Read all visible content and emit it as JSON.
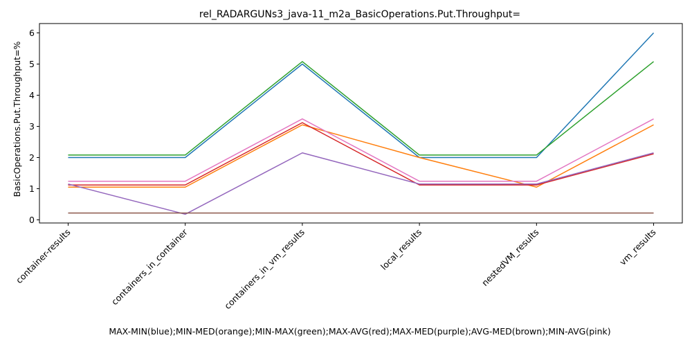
{
  "chart_data": {
    "type": "line",
    "title": "rel_RADARGUNs3_java-11_m2a_BasicOperations.Put.Throughput=",
    "xlabel": "MAX-MIN(blue);MIN-MED(orange);MIN-MAX(green);MAX-AVG(red);MAX-MED(purple);AVG-MED(brown);MIN-AVG(pink)",
    "ylabel": "BasicOperations.Put.Throughput=%",
    "categories": [
      "container-results",
      "containers_in_container",
      "containers_in_vm_results",
      "local_results",
      "nestedVM_results",
      "vm_results"
    ],
    "ylim": [
      -0.1,
      6.3
    ],
    "yticks": [
      0,
      1,
      2,
      3,
      4,
      5,
      6
    ],
    "grid": false,
    "series": [
      {
        "color": "#1f77b4",
        "values": [
          2.0,
          2.0,
          5.0,
          2.0,
          2.0,
          6.0
        ]
      },
      {
        "color": "#ff7f0e",
        "values": [
          1.05,
          1.05,
          3.05,
          2.0,
          1.05,
          3.05
        ]
      },
      {
        "color": "#2ca02c",
        "values": [
          2.08,
          2.08,
          5.08,
          2.08,
          2.08,
          5.08
        ]
      },
      {
        "color": "#d62728",
        "values": [
          1.12,
          1.12,
          3.12,
          1.12,
          1.12,
          2.12
        ]
      },
      {
        "color": "#9467bd",
        "values": [
          1.15,
          0.18,
          2.15,
          1.15,
          1.15,
          2.15
        ]
      },
      {
        "color": "#8c564b",
        "values": [
          0.22,
          0.22,
          0.22,
          0.22,
          0.22,
          0.22
        ]
      },
      {
        "color": "#e377c2",
        "values": [
          1.24,
          1.24,
          3.24,
          1.24,
          1.24,
          3.24
        ]
      }
    ]
  }
}
